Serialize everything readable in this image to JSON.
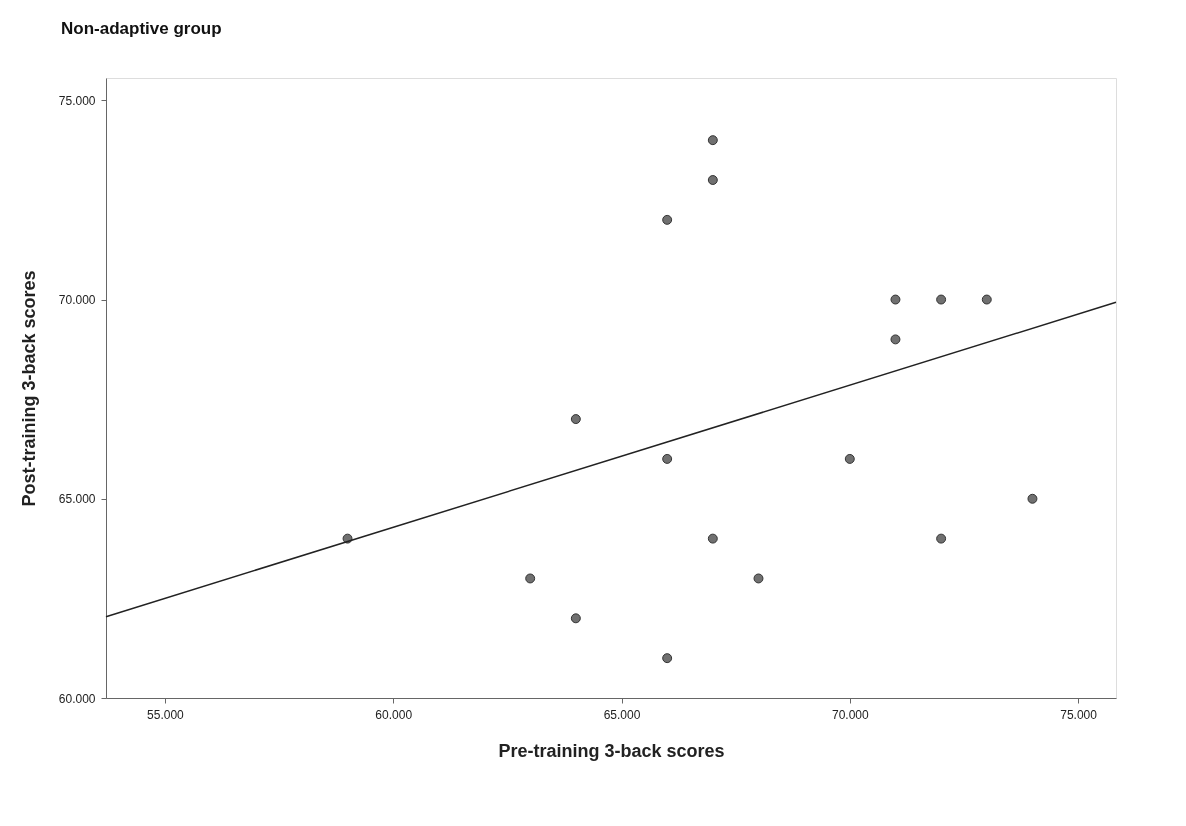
{
  "chart_data": {
    "type": "scatter",
    "title": "Non-adaptive group",
    "xlabel": "Pre-training 3-back scores",
    "ylabel": "Post-training 3-back scores",
    "xlim": [
      53.71,
      75.83
    ],
    "ylim": [
      60,
      75.56
    ],
    "xticks": [
      {
        "value": 55,
        "label": "55.000"
      },
      {
        "value": 60,
        "label": "60.000"
      },
      {
        "value": 65,
        "label": "65.000"
      },
      {
        "value": 70,
        "label": "70.000"
      },
      {
        "value": 75,
        "label": "75.000"
      }
    ],
    "yticks": [
      {
        "value": 60,
        "label": "60.000"
      },
      {
        "value": 65,
        "label": "65.000"
      },
      {
        "value": 70,
        "label": "70.000"
      },
      {
        "value": 75,
        "label": "75.000"
      }
    ],
    "grid": false,
    "marker": "circle",
    "series": [
      {
        "color": "#707070",
        "x": [
          59,
          63,
          64,
          64,
          66,
          66,
          66,
          67,
          67,
          67,
          68,
          70,
          71,
          71,
          72,
          72,
          73,
          74
        ],
        "values": [
          64,
          63,
          62,
          67,
          72,
          66,
          61,
          74,
          73,
          64,
          63,
          66,
          70,
          69,
          70,
          64,
          70,
          65
        ]
      },
      {
        "type": "line",
        "marker": "none",
        "line_style": "solid",
        "color": "#222222",
        "x": [
          53.71,
          75.83
        ],
        "values": [
          62.04,
          69.93
        ]
      }
    ]
  }
}
